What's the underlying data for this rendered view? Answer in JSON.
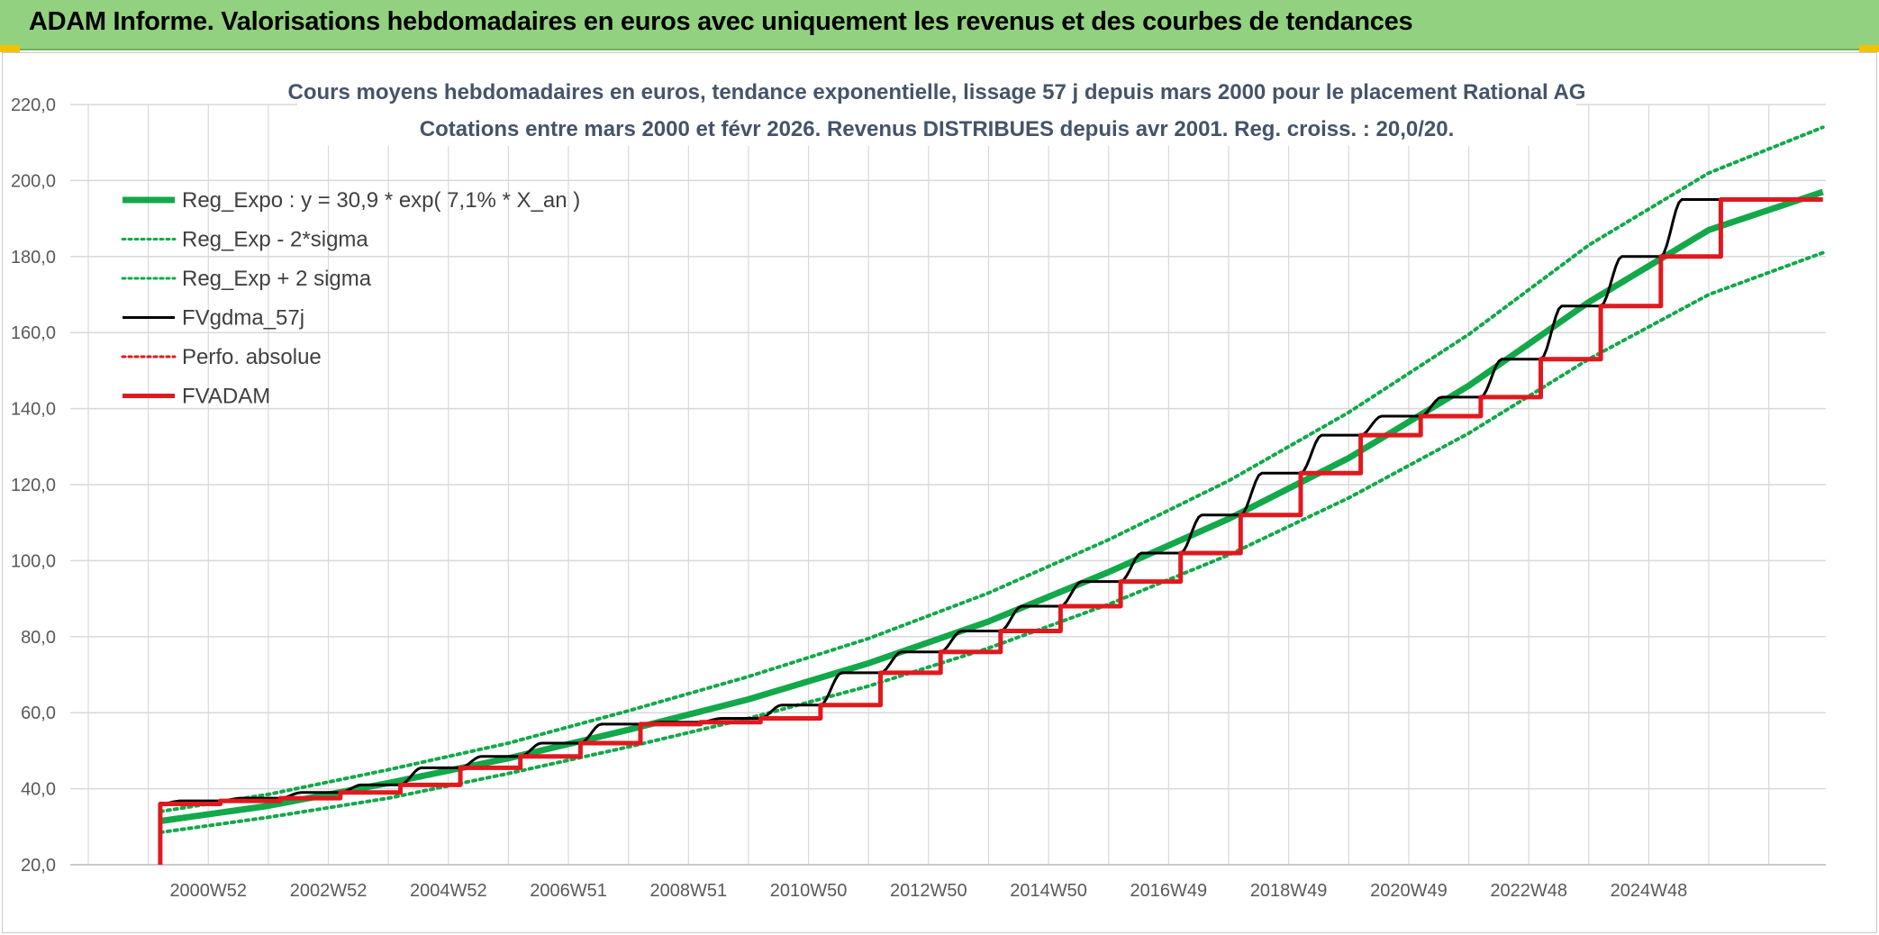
{
  "banner": {
    "title": "ADAM Informe. Valorisations hebdomadaires en euros avec uniquement les revenus et des courbes de tendances"
  },
  "chart_data": {
    "type": "line",
    "title": "Cours moyens hebdomadaires en euros, tendance exponentielle, lissage 57 j depuis mars 2000 pour le placement Rational AG",
    "subtitle": "Cotations entre mars 2000 et févr 2026. Revenus DISTRIBUES depuis avr 2001. Reg. croiss. : 20,0/20.",
    "xlabel": "",
    "ylabel": "",
    "ylim": [
      20,
      220
    ],
    "yticks": [
      "20,0",
      "40,0",
      "60,0",
      "80,0",
      "100,0",
      "120,0",
      "140,0",
      "160,0",
      "180,0",
      "200,0",
      "220,0"
    ],
    "xlim": [
      1998.7,
      2027.95
    ],
    "xticks": [
      {
        "label": "2000W52",
        "x": 2001.0
      },
      {
        "label": "2002W52",
        "x": 2003.0
      },
      {
        "label": "2004W52",
        "x": 2005.0
      },
      {
        "label": "2006W51",
        "x": 2007.0
      },
      {
        "label": "2008W51",
        "x": 2009.0
      },
      {
        "label": "2010W50",
        "x": 2011.0
      },
      {
        "label": "2012W50",
        "x": 2013.0
      },
      {
        "label": "2014W50",
        "x": 2015.0
      },
      {
        "label": "2016W49",
        "x": 2017.0
      },
      {
        "label": "2018W49",
        "x": 2019.0
      },
      {
        "label": "2020W49",
        "x": 2021.0
      },
      {
        "label": "2022W48",
        "x": 2023.0
      },
      {
        "label": "2024W48",
        "x": 2025.0
      }
    ],
    "grid": true,
    "legend_position": "top-left",
    "series": [
      {
        "name": "Reg_Expo : y = 30,9 * exp( 7,1% *  X_an )",
        "color": "#13a84a",
        "style": "solid-thick",
        "x": [
          2000.2,
          2002,
          2004,
          2006,
          2008,
          2010,
          2012,
          2014,
          2016,
          2018,
          2020,
          2022,
          2024,
          2026,
          2027.9
        ],
        "y": [
          31.5,
          35.5,
          41.5,
          48,
          55.5,
          63.5,
          73,
          84,
          97,
          111,
          127,
          146,
          168,
          187,
          197
        ]
      },
      {
        "name": "Reg_Exp - 2*sigma",
        "color": "#13a84a",
        "style": "dotted",
        "x": [
          2000.2,
          2002,
          2004,
          2006,
          2008,
          2010,
          2012,
          2014,
          2016,
          2018,
          2020,
          2022,
          2024,
          2026,
          2027.9
        ],
        "y": [
          28.5,
          32.5,
          37.5,
          44,
          51,
          58.5,
          67,
          77,
          88.5,
          101.5,
          116.5,
          133.5,
          153,
          170,
          181
        ]
      },
      {
        "name": "Reg_Exp + 2 sigma",
        "color": "#13a84a",
        "style": "dotted",
        "x": [
          2000.2,
          2002,
          2004,
          2006,
          2008,
          2010,
          2012,
          2014,
          2016,
          2018,
          2020,
          2022,
          2024,
          2026,
          2027.9
        ],
        "y": [
          34,
          38.5,
          45,
          52,
          60.5,
          69.5,
          79.5,
          91.5,
          105.5,
          121,
          139,
          159.5,
          183,
          202,
          214
        ]
      },
      {
        "name": "FVgdma_57j",
        "color": "#000000",
        "style": "solid",
        "x": [
          2000.2,
          2001.2,
          2002.2,
          2003.2,
          2004.2,
          2005.2,
          2006.2,
          2007.2,
          2008.2,
          2009.2,
          2010.2,
          2011.2,
          2012.2,
          2013.2,
          2014.2,
          2015.2,
          2016.2,
          2017.2,
          2018.2,
          2019.2,
          2020.2,
          2021.2,
          2022.2,
          2023.2,
          2024.2,
          2025.2,
          2026.2,
          2027.2
        ],
        "y": [
          36,
          36.8,
          37.5,
          39,
          41,
          45.5,
          48.5,
          52,
          57,
          57.5,
          58.5,
          62,
          70.5,
          76,
          81.5,
          88,
          94.5,
          102,
          112,
          123,
          133,
          138,
          143,
          153,
          167,
          180,
          195,
          195
        ]
      },
      {
        "name": "Perfo. absolue",
        "color": "#e0191e",
        "style": "dotted",
        "x": [],
        "y": []
      },
      {
        "name": "FVADAM",
        "color": "#e0191e",
        "style": "step-thick",
        "x": [
          2000.2,
          2000.2,
          2001.2,
          2002.2,
          2003.2,
          2004.2,
          2005.2,
          2006.2,
          2007.2,
          2008.2,
          2009.2,
          2010.2,
          2011.2,
          2012.2,
          2013.2,
          2014.2,
          2015.2,
          2016.2,
          2017.2,
          2018.2,
          2019.2,
          2020.2,
          2021.2,
          2022.2,
          2023.2,
          2024.2,
          2025.2,
          2026.2,
          2027.9
        ],
        "y": [
          20,
          36,
          36.8,
          37.5,
          39,
          41,
          45.5,
          48.5,
          52,
          57,
          57.5,
          58.5,
          62,
          70.5,
          76,
          81.5,
          88,
          94.5,
          102,
          112,
          123,
          133,
          138,
          143,
          153,
          167,
          180,
          195,
          195
        ]
      }
    ]
  }
}
